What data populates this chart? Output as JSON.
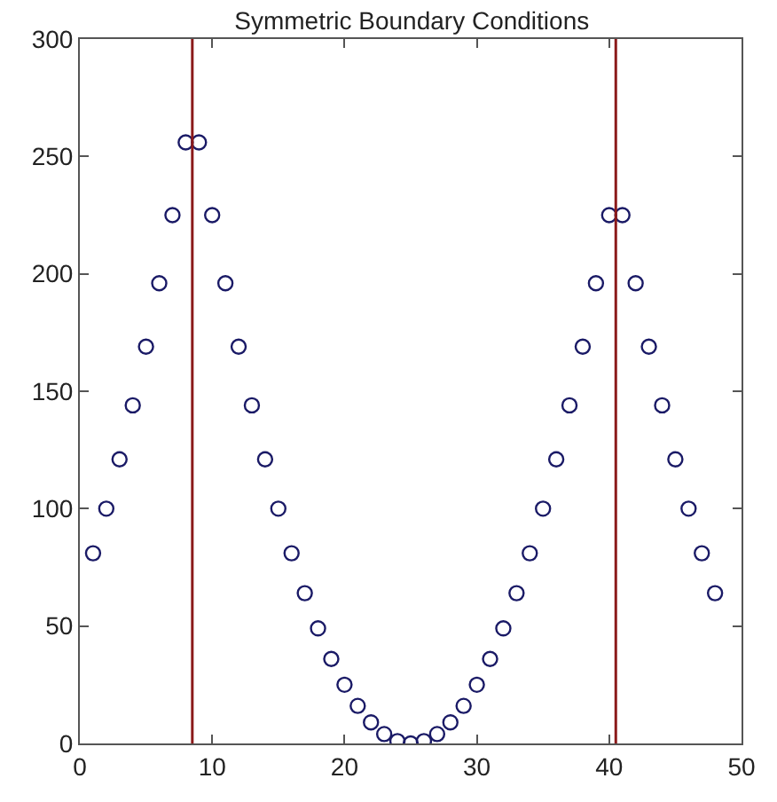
{
  "chart_data": {
    "type": "scatter",
    "title": "Symmetric Boundary Conditions",
    "x": [
      1,
      2,
      3,
      4,
      5,
      6,
      7,
      8,
      9,
      10,
      11,
      12,
      13,
      14,
      15,
      16,
      17,
      18,
      19,
      20,
      21,
      22,
      23,
      24,
      25,
      26,
      27,
      28,
      29,
      30,
      31,
      32,
      33,
      34,
      35,
      36,
      37,
      38,
      39,
      40,
      41,
      42,
      43,
      44,
      45,
      46,
      47,
      48
    ],
    "series": [
      {
        "color": "#1a1a66",
        "values": [
          81,
          100,
          121,
          144,
          169,
          196,
          225,
          256,
          256,
          225,
          196,
          169,
          144,
          121,
          100,
          81,
          64,
          49,
          36,
          25,
          16,
          9,
          4,
          1,
          0,
          1,
          4,
          9,
          16,
          25,
          36,
          49,
          64,
          81,
          100,
          121,
          144,
          169,
          196,
          225,
          225,
          196,
          169,
          144,
          121,
          100,
          81,
          64
        ]
      }
    ],
    "marker": "circle",
    "xlim": [
      0,
      50
    ],
    "xticks": [
      0,
      10,
      20,
      30,
      40,
      50
    ],
    "ylim": [
      0,
      300
    ],
    "yticks": [
      0,
      50,
      100,
      150,
      200,
      250,
      300
    ],
    "ref_lines": [
      {
        "axis": "x",
        "value": 8.5,
        "color": "#8b1a1a"
      },
      {
        "axis": "x",
        "value": 40.5,
        "color": "#8b1a1a"
      }
    ]
  }
}
